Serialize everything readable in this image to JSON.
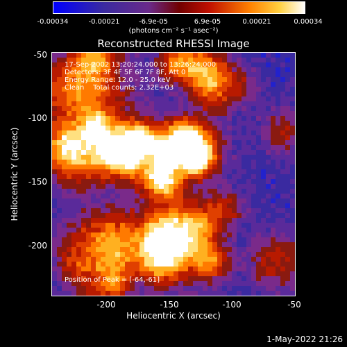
{
  "colorbar": {
    "ticks": [
      "-0.00034",
      "-0.00021",
      "-6.9e-05",
      "6.9e-05",
      "0.00021",
      "0.00034"
    ],
    "units": "(photons cm⁻² s⁻¹ asec⁻²)"
  },
  "title": "Reconstructed RHESSI Image",
  "annotations": {
    "time_range": "17-Sep-2002 13:20:24.000 to 13:26:24.000",
    "detectors": "Detectors: 3F 4F 5F 6F 7F 8F, Att 0",
    "energy": "Energy Range: 12.0 - 25.0 keV",
    "method": "Clean    Total counts: 2.32E+03",
    "peak": "Position of Peak = [-64,-61]"
  },
  "axes": {
    "xlabel": "Heliocentric X (arcsec)",
    "ylabel": "Heliocentric Y (arcsec)",
    "xticks": [
      "-200",
      "-150",
      "-100",
      "-50"
    ],
    "yticks": [
      "-50",
      "-100",
      "-150",
      "-200"
    ],
    "xlim": [
      -240,
      -50
    ],
    "ylim": [
      -240,
      -50
    ]
  },
  "datestamp": "1-May-2022 21:26",
  "colormap": [
    "#0a0aff",
    "#2222cc",
    "#3a2aa0",
    "#5a2a9a",
    "#7a2a8a",
    "#8a1a10",
    "#b81a00",
    "#e04000",
    "#ff7a00",
    "#ffb020",
    "#ffe080",
    "#ffffff"
  ]
}
